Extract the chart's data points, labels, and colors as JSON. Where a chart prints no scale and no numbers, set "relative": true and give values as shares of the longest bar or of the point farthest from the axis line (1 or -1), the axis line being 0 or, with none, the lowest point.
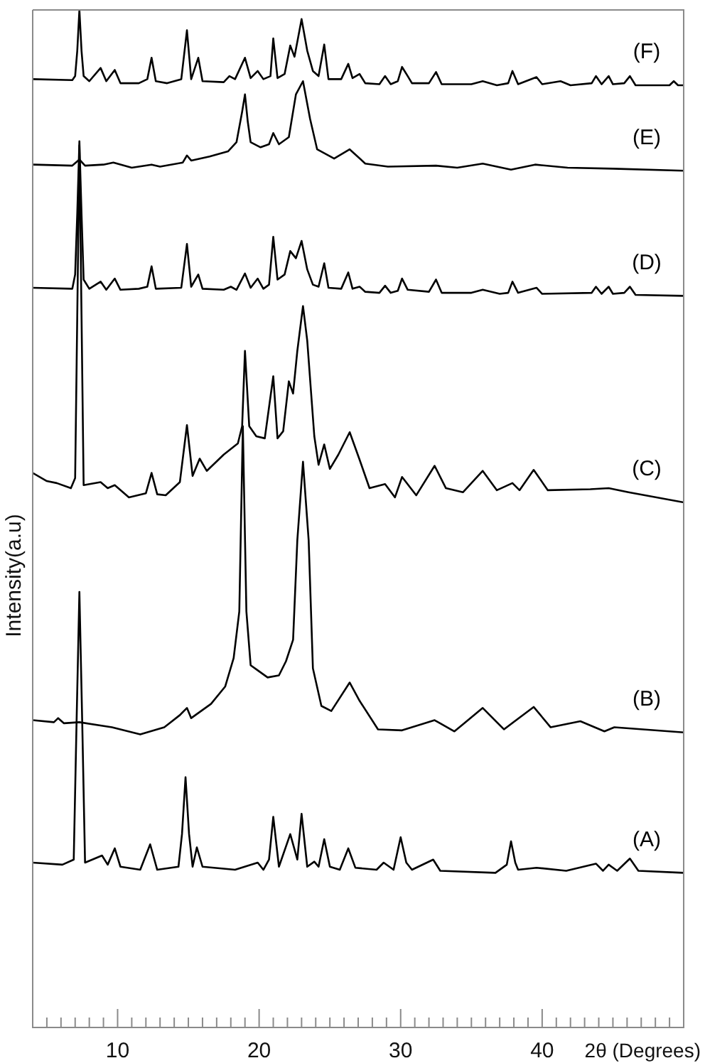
{
  "chart_data": {
    "type": "line",
    "relative": true,
    "xlabel": "2θ (Degrees)",
    "ylabel": "Intensity(a.u)",
    "xlim": [
      4,
      50
    ],
    "xticks": [
      {
        "value": 5,
        "label": null
      },
      {
        "value": 6,
        "label": null
      },
      {
        "value": 7,
        "label": null
      },
      {
        "value": 8,
        "label": null
      },
      {
        "value": 9,
        "label": null
      },
      10,
      {
        "value": 11,
        "label": null
      },
      {
        "value": 12,
        "label": null
      },
      {
        "value": 13,
        "label": null
      },
      {
        "value": 14,
        "label": null
      },
      {
        "value": 15,
        "label": null
      },
      {
        "value": 16,
        "label": null
      },
      {
        "value": 17,
        "label": null
      },
      {
        "value": 18,
        "label": null
      },
      {
        "value": 19,
        "label": null
      },
      20,
      {
        "value": 21,
        "label": null
      },
      {
        "value": 22,
        "label": null
      },
      {
        "value": 23,
        "label": null
      },
      {
        "value": 24,
        "label": null
      },
      {
        "value": 25,
        "label": null
      },
      {
        "value": 26,
        "label": null
      },
      {
        "value": 27,
        "label": null
      },
      {
        "value": 28,
        "label": null
      },
      {
        "value": 29,
        "label": null
      },
      30,
      {
        "value": 31,
        "label": null
      },
      {
        "value": 32,
        "label": null
      },
      {
        "value": 33,
        "label": null
      },
      {
        "value": 34,
        "label": null
      },
      {
        "value": 35,
        "label": null
      },
      {
        "value": 36,
        "label": null
      },
      {
        "value": 37,
        "label": null
      },
      {
        "value": 38,
        "label": null
      },
      {
        "value": 39,
        "label": null
      },
      40,
      {
        "value": 41,
        "label": null
      },
      {
        "value": 42,
        "label": null
      },
      {
        "value": 43,
        "label": null
      },
      {
        "value": 44,
        "label": null
      },
      {
        "value": 45,
        "label": null
      },
      {
        "value": 46,
        "label": null
      },
      {
        "value": 47,
        "label": null
      },
      {
        "value": 48,
        "label": null
      },
      {
        "value": 49,
        "label": null
      }
    ],
    "series": [
      {
        "name": "(F)",
        "color": "#000000",
        "x": [
          4.0,
          6.8,
          7.0,
          7.15,
          7.3,
          7.45,
          7.6,
          8.0,
          8.8,
          9.2,
          9.8,
          10.2,
          11.5,
          12.1,
          12.4,
          12.7,
          13.5,
          14.5,
          14.9,
          15.2,
          15.7,
          16.0,
          17.5,
          17.9,
          18.3,
          19.0,
          19.4,
          19.9,
          20.3,
          20.8,
          21.0,
          21.3,
          21.8,
          22.2,
          22.5,
          23.0,
          23.4,
          23.8,
          24.2,
          24.6,
          24.9,
          25.8,
          26.3,
          26.6,
          27.1,
          27.5,
          28.5,
          28.9,
          29.3,
          29.8,
          30.1,
          30.5,
          30.8,
          32.0,
          32.5,
          32.9,
          35.0,
          35.8,
          36.8,
          37.6,
          37.9,
          38.3,
          39.6,
          40.0,
          41.3,
          42.0,
          43.5,
          43.8,
          44.2,
          44.7,
          45.0,
          45.8,
          46.2,
          46.6,
          49.0,
          49.3,
          49.6,
          50.0
        ],
        "values": [
          0.932,
          0.931,
          0.935,
          0.96,
          1.0,
          0.96,
          0.935,
          0.93,
          0.943,
          0.93,
          0.941,
          0.928,
          0.928,
          0.932,
          0.953,
          0.93,
          0.928,
          0.932,
          0.98,
          0.932,
          0.953,
          0.93,
          0.929,
          0.935,
          0.932,
          0.953,
          0.933,
          0.94,
          0.932,
          0.935,
          0.972,
          0.933,
          0.937,
          0.965,
          0.954,
          0.991,
          0.96,
          0.94,
          0.935,
          0.966,
          0.932,
          0.932,
          0.947,
          0.933,
          0.937,
          0.928,
          0.927,
          0.935,
          0.927,
          0.93,
          0.944,
          0.935,
          0.928,
          0.928,
          0.939,
          0.927,
          0.927,
          0.93,
          0.926,
          0.928,
          0.94,
          0.927,
          0.934,
          0.927,
          0.93,
          0.926,
          0.928,
          0.935,
          0.927,
          0.935,
          0.927,
          0.928,
          0.935,
          0.926,
          0.926,
          0.93,
          0.926,
          0.926
        ]
      },
      {
        "name": "(E)",
        "color": "#000000",
        "x": [
          4.0,
          6.8,
          7.3,
          7.7,
          9.0,
          9.7,
          11.0,
          12.4,
          13.0,
          14.6,
          14.9,
          15.2,
          16.5,
          17.8,
          18.4,
          18.8,
          19.0,
          19.2,
          19.4,
          20.1,
          20.7,
          21.0,
          21.4,
          22.1,
          22.6,
          23.1,
          23.6,
          24.1,
          25.3,
          26.4,
          27.5,
          29.1,
          32.5,
          34.0,
          35.8,
          37.8,
          39.5,
          41.8,
          45.0,
          50.0
        ],
        "values": [
          0.848,
          0.847,
          0.853,
          0.847,
          0.848,
          0.85,
          0.845,
          0.848,
          0.846,
          0.85,
          0.857,
          0.852,
          0.856,
          0.861,
          0.87,
          0.9,
          0.917,
          0.89,
          0.87,
          0.865,
          0.868,
          0.879,
          0.868,
          0.875,
          0.917,
          0.93,
          0.893,
          0.863,
          0.854,
          0.863,
          0.849,
          0.846,
          0.847,
          0.845,
          0.849,
          0.843,
          0.848,
          0.845,
          0.844,
          0.842
        ]
      },
      {
        "name": "(D)",
        "color": "#000000",
        "x": [
          4.0,
          6.8,
          7.0,
          7.15,
          7.3,
          7.45,
          7.6,
          8.0,
          8.8,
          9.2,
          9.8,
          10.2,
          11.5,
          12.1,
          12.4,
          12.7,
          14.5,
          14.9,
          15.2,
          15.7,
          16.0,
          17.5,
          18.0,
          18.4,
          19.0,
          19.4,
          19.9,
          20.3,
          20.7,
          21.0,
          21.3,
          21.8,
          22.2,
          22.6,
          23.0,
          23.4,
          23.8,
          24.2,
          24.6,
          24.9,
          25.8,
          26.3,
          26.6,
          27.1,
          27.5,
          28.5,
          28.9,
          29.3,
          29.8,
          30.1,
          30.5,
          32.0,
          32.5,
          32.9,
          35.0,
          35.8,
          37.0,
          37.6,
          37.9,
          38.3,
          39.6,
          40.0,
          43.5,
          43.8,
          44.2,
          44.7,
          45.0,
          45.8,
          46.2,
          46.6,
          50.0
        ],
        "values": [
          0.727,
          0.726,
          0.74,
          0.8,
          0.871,
          0.8,
          0.735,
          0.726,
          0.733,
          0.725,
          0.736,
          0.725,
          0.726,
          0.728,
          0.748,
          0.726,
          0.727,
          0.77,
          0.728,
          0.74,
          0.726,
          0.725,
          0.728,
          0.725,
          0.741,
          0.727,
          0.736,
          0.726,
          0.73,
          0.777,
          0.735,
          0.74,
          0.763,
          0.756,
          0.773,
          0.745,
          0.73,
          0.728,
          0.751,
          0.727,
          0.726,
          0.742,
          0.726,
          0.728,
          0.723,
          0.722,
          0.729,
          0.722,
          0.724,
          0.736,
          0.725,
          0.723,
          0.735,
          0.722,
          0.722,
          0.725,
          0.721,
          0.722,
          0.733,
          0.722,
          0.727,
          0.721,
          0.722,
          0.728,
          0.721,
          0.728,
          0.721,
          0.722,
          0.728,
          0.72,
          0.719
        ]
      },
      {
        "name": "(C)",
        "color": "#000000",
        "x": [
          4.0,
          5.0,
          5.7,
          6.7,
          7.0,
          7.15,
          7.3,
          7.45,
          7.6,
          8.8,
          9.3,
          9.8,
          10.8,
          12.0,
          12.4,
          12.8,
          13.4,
          14.4,
          14.9,
          15.3,
          15.8,
          16.3,
          17.5,
          18.5,
          18.8,
          19.0,
          19.3,
          19.8,
          20.4,
          21.0,
          21.3,
          21.7,
          22.1,
          22.4,
          22.7,
          23.1,
          23.4,
          23.9,
          24.2,
          24.6,
          25.0,
          25.6,
          26.4,
          27.1,
          27.8,
          28.9,
          29.6,
          30.1,
          31.1,
          32.4,
          33.2,
          34.4,
          35.8,
          36.8,
          37.9,
          38.4,
          39.4,
          40.4,
          43.4,
          44.7,
          46.1,
          50.0
        ],
        "values": [
          0.545,
          0.537,
          0.535,
          0.53,
          0.54,
          0.7,
          0.867,
          0.7,
          0.533,
          0.536,
          0.53,
          0.533,
          0.521,
          0.525,
          0.545,
          0.524,
          0.523,
          0.536,
          0.592,
          0.542,
          0.559,
          0.547,
          0.563,
          0.574,
          0.591,
          0.665,
          0.591,
          0.581,
          0.579,
          0.64,
          0.579,
          0.586,
          0.635,
          0.623,
          0.665,
          0.709,
          0.675,
          0.581,
          0.553,
          0.573,
          0.549,
          0.563,
          0.585,
          0.558,
          0.53,
          0.534,
          0.521,
          0.541,
          0.523,
          0.552,
          0.53,
          0.526,
          0.547,
          0.528,
          0.535,
          0.528,
          0.548,
          0.528,
          0.529,
          0.53,
          0.526,
          0.516
        ]
      },
      {
        "name": "(B)",
        "color": "#000000",
        "x": [
          4.0,
          5.5,
          5.8,
          6.2,
          7.3,
          9.6,
          11.6,
          13.3,
          14.4,
          14.9,
          15.2,
          16.6,
          17.6,
          18.2,
          18.6,
          18.85,
          19.1,
          19.4,
          19.9,
          20.6,
          21.4,
          21.9,
          22.4,
          22.7,
          23.1,
          23.5,
          23.8,
          24.4,
          25.1,
          26.4,
          27.1,
          28.4,
          30.1,
          32.4,
          33.8,
          35.8,
          37.3,
          39.4,
          40.6,
          42.7,
          44.4,
          45.1,
          50.0
        ],
        "values": [
          0.302,
          0.3,
          0.304,
          0.299,
          0.3,
          0.295,
          0.288,
          0.295,
          0.307,
          0.314,
          0.304,
          0.318,
          0.335,
          0.363,
          0.409,
          0.591,
          0.409,
          0.356,
          0.351,
          0.344,
          0.346,
          0.36,
          0.381,
          0.479,
          0.556,
          0.479,
          0.353,
          0.316,
          0.311,
          0.339,
          0.321,
          0.293,
          0.292,
          0.302,
          0.291,
          0.314,
          0.293,
          0.315,
          0.295,
          0.301,
          0.291,
          0.295,
          0.29
        ]
      },
      {
        "name": "(A)",
        "color": "#000000",
        "x": [
          4.0,
          6.1,
          6.9,
          7.1,
          7.3,
          7.5,
          7.7,
          8.9,
          9.3,
          9.8,
          10.2,
          11.6,
          12.3,
          12.8,
          14.3,
          14.55,
          14.8,
          15.05,
          15.3,
          15.6,
          16.0,
          18.3,
          19.9,
          20.3,
          20.7,
          21.0,
          21.4,
          22.2,
          22.7,
          23.0,
          23.4,
          23.9,
          24.2,
          24.6,
          25.0,
          25.7,
          26.3,
          26.8,
          28.3,
          28.8,
          29.5,
          30.0,
          30.4,
          30.8,
          32.3,
          32.8,
          36.7,
          37.5,
          37.8,
          38.1,
          38.3,
          39.6,
          41.7,
          43.8,
          44.3,
          44.7,
          45.3,
          46.2,
          46.8,
          50.0
        ],
        "values": [
          0.162,
          0.16,
          0.165,
          0.3,
          0.428,
          0.3,
          0.162,
          0.169,
          0.16,
          0.176,
          0.158,
          0.155,
          0.18,
          0.155,
          0.158,
          0.19,
          0.246,
          0.19,
          0.158,
          0.177,
          0.158,
          0.155,
          0.162,
          0.155,
          0.165,
          0.207,
          0.158,
          0.19,
          0.165,
          0.21,
          0.158,
          0.163,
          0.158,
          0.185,
          0.158,
          0.155,
          0.176,
          0.157,
          0.155,
          0.162,
          0.155,
          0.187,
          0.162,
          0.155,
          0.165,
          0.154,
          0.152,
          0.16,
          0.183,
          0.162,
          0.155,
          0.157,
          0.154,
          0.161,
          0.154,
          0.16,
          0.154,
          0.166,
          0.154,
          0.152
        ]
      }
    ]
  }
}
